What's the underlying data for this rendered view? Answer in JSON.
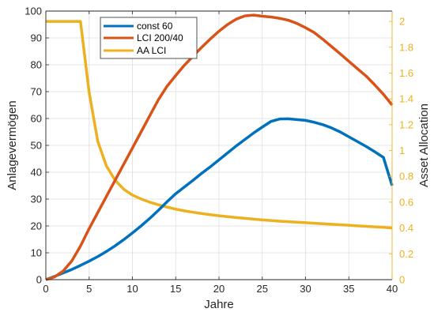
{
  "chart_data": {
    "type": "line",
    "xlabel": "Jahre",
    "ylabel": "Anlagevermögen",
    "y2label": "Asset Allocation",
    "xlim": [
      0,
      40
    ],
    "ylim": [
      0,
      100
    ],
    "y2lim": [
      0,
      2.08
    ],
    "xticks": [
      "0",
      "5",
      "10",
      "15",
      "20",
      "25",
      "30",
      "35",
      "40"
    ],
    "yticks": [
      "0",
      "10",
      "20",
      "30",
      "40",
      "50",
      "60",
      "70",
      "80",
      "90",
      "100"
    ],
    "y2ticks": [
      "0",
      "0.2",
      "0.4",
      "0.6",
      "0.8",
      "1",
      "1.2",
      "1.4",
      "1.6",
      "1.8",
      "2"
    ],
    "grid": true,
    "legend_position": "top-left",
    "series": [
      {
        "name": "const 60",
        "axis": "left",
        "color": "#0072BD",
        "x": [
          0,
          1,
          2,
          3,
          4,
          5,
          6,
          7,
          8,
          9,
          10,
          11,
          12,
          13,
          14,
          15,
          16,
          17,
          18,
          19,
          20,
          21,
          22,
          23,
          24,
          25,
          26,
          27,
          28,
          29,
          30,
          31,
          32,
          33,
          34,
          35,
          36,
          37,
          38,
          39,
          40
        ],
        "y": [
          0,
          1.2,
          2.5,
          3.8,
          5.3,
          6.9,
          8.6,
          10.5,
          12.6,
          14.9,
          17.4,
          20.0,
          22.8,
          25.8,
          29.0,
          32.0,
          34.5,
          37.0,
          39.6,
          42.0,
          44.6,
          47.2,
          49.8,
          52.2,
          54.6,
          56.8,
          58.9,
          59.8,
          59.9,
          59.6,
          59.3,
          58.6,
          57.7,
          56.5,
          55.0,
          53.2,
          51.4,
          49.6,
          47.6,
          45.5,
          35.0
        ]
      },
      {
        "name": "LCI 200/40",
        "axis": "left",
        "color": "#D95319",
        "x": [
          0,
          1,
          2,
          3,
          4,
          5,
          6,
          7,
          8,
          9,
          10,
          11,
          12,
          13,
          14,
          15,
          16,
          17,
          18,
          19,
          20,
          21,
          22,
          23,
          24,
          25,
          26,
          27,
          28,
          29,
          30,
          31,
          32,
          33,
          34,
          35,
          36,
          37,
          38,
          39,
          40
        ],
        "y": [
          0,
          1.0,
          3.2,
          7.0,
          12.5,
          19.0,
          25.0,
          31.0,
          37.0,
          43.0,
          49.0,
          55.0,
          61.0,
          67.0,
          72.0,
          76.0,
          79.8,
          83.2,
          86.5,
          89.6,
          92.5,
          95.0,
          97.0,
          98.2,
          98.5,
          98.1,
          97.8,
          97.3,
          96.6,
          95.4,
          93.8,
          92.0,
          89.5,
          86.8,
          84.1,
          81.3,
          78.5,
          75.8,
          72.5,
          69.0,
          65.0
        ]
      },
      {
        "name": "AA LCI",
        "axis": "right",
        "color": "#EDB120",
        "x": [
          0,
          1,
          2,
          3,
          4,
          5,
          6,
          7,
          8,
          9,
          10,
          11,
          12,
          13,
          14,
          15,
          16,
          17,
          18,
          19,
          20,
          21,
          22,
          23,
          24,
          25,
          26,
          27,
          28,
          29,
          30,
          31,
          32,
          33,
          34,
          35,
          36,
          37,
          38,
          39,
          40
        ],
        "y": [
          2.0,
          2.0,
          2.0,
          2.0,
          2.0,
          1.45,
          1.07,
          0.88,
          0.77,
          0.7,
          0.655,
          0.625,
          0.6,
          0.58,
          0.562,
          0.546,
          0.533,
          0.522,
          0.512,
          0.503,
          0.495,
          0.488,
          0.481,
          0.475,
          0.469,
          0.463,
          0.458,
          0.453,
          0.449,
          0.445,
          0.441,
          0.437,
          0.433,
          0.429,
          0.425,
          0.421,
          0.417,
          0.413,
          0.409,
          0.405,
          0.4
        ]
      }
    ]
  }
}
